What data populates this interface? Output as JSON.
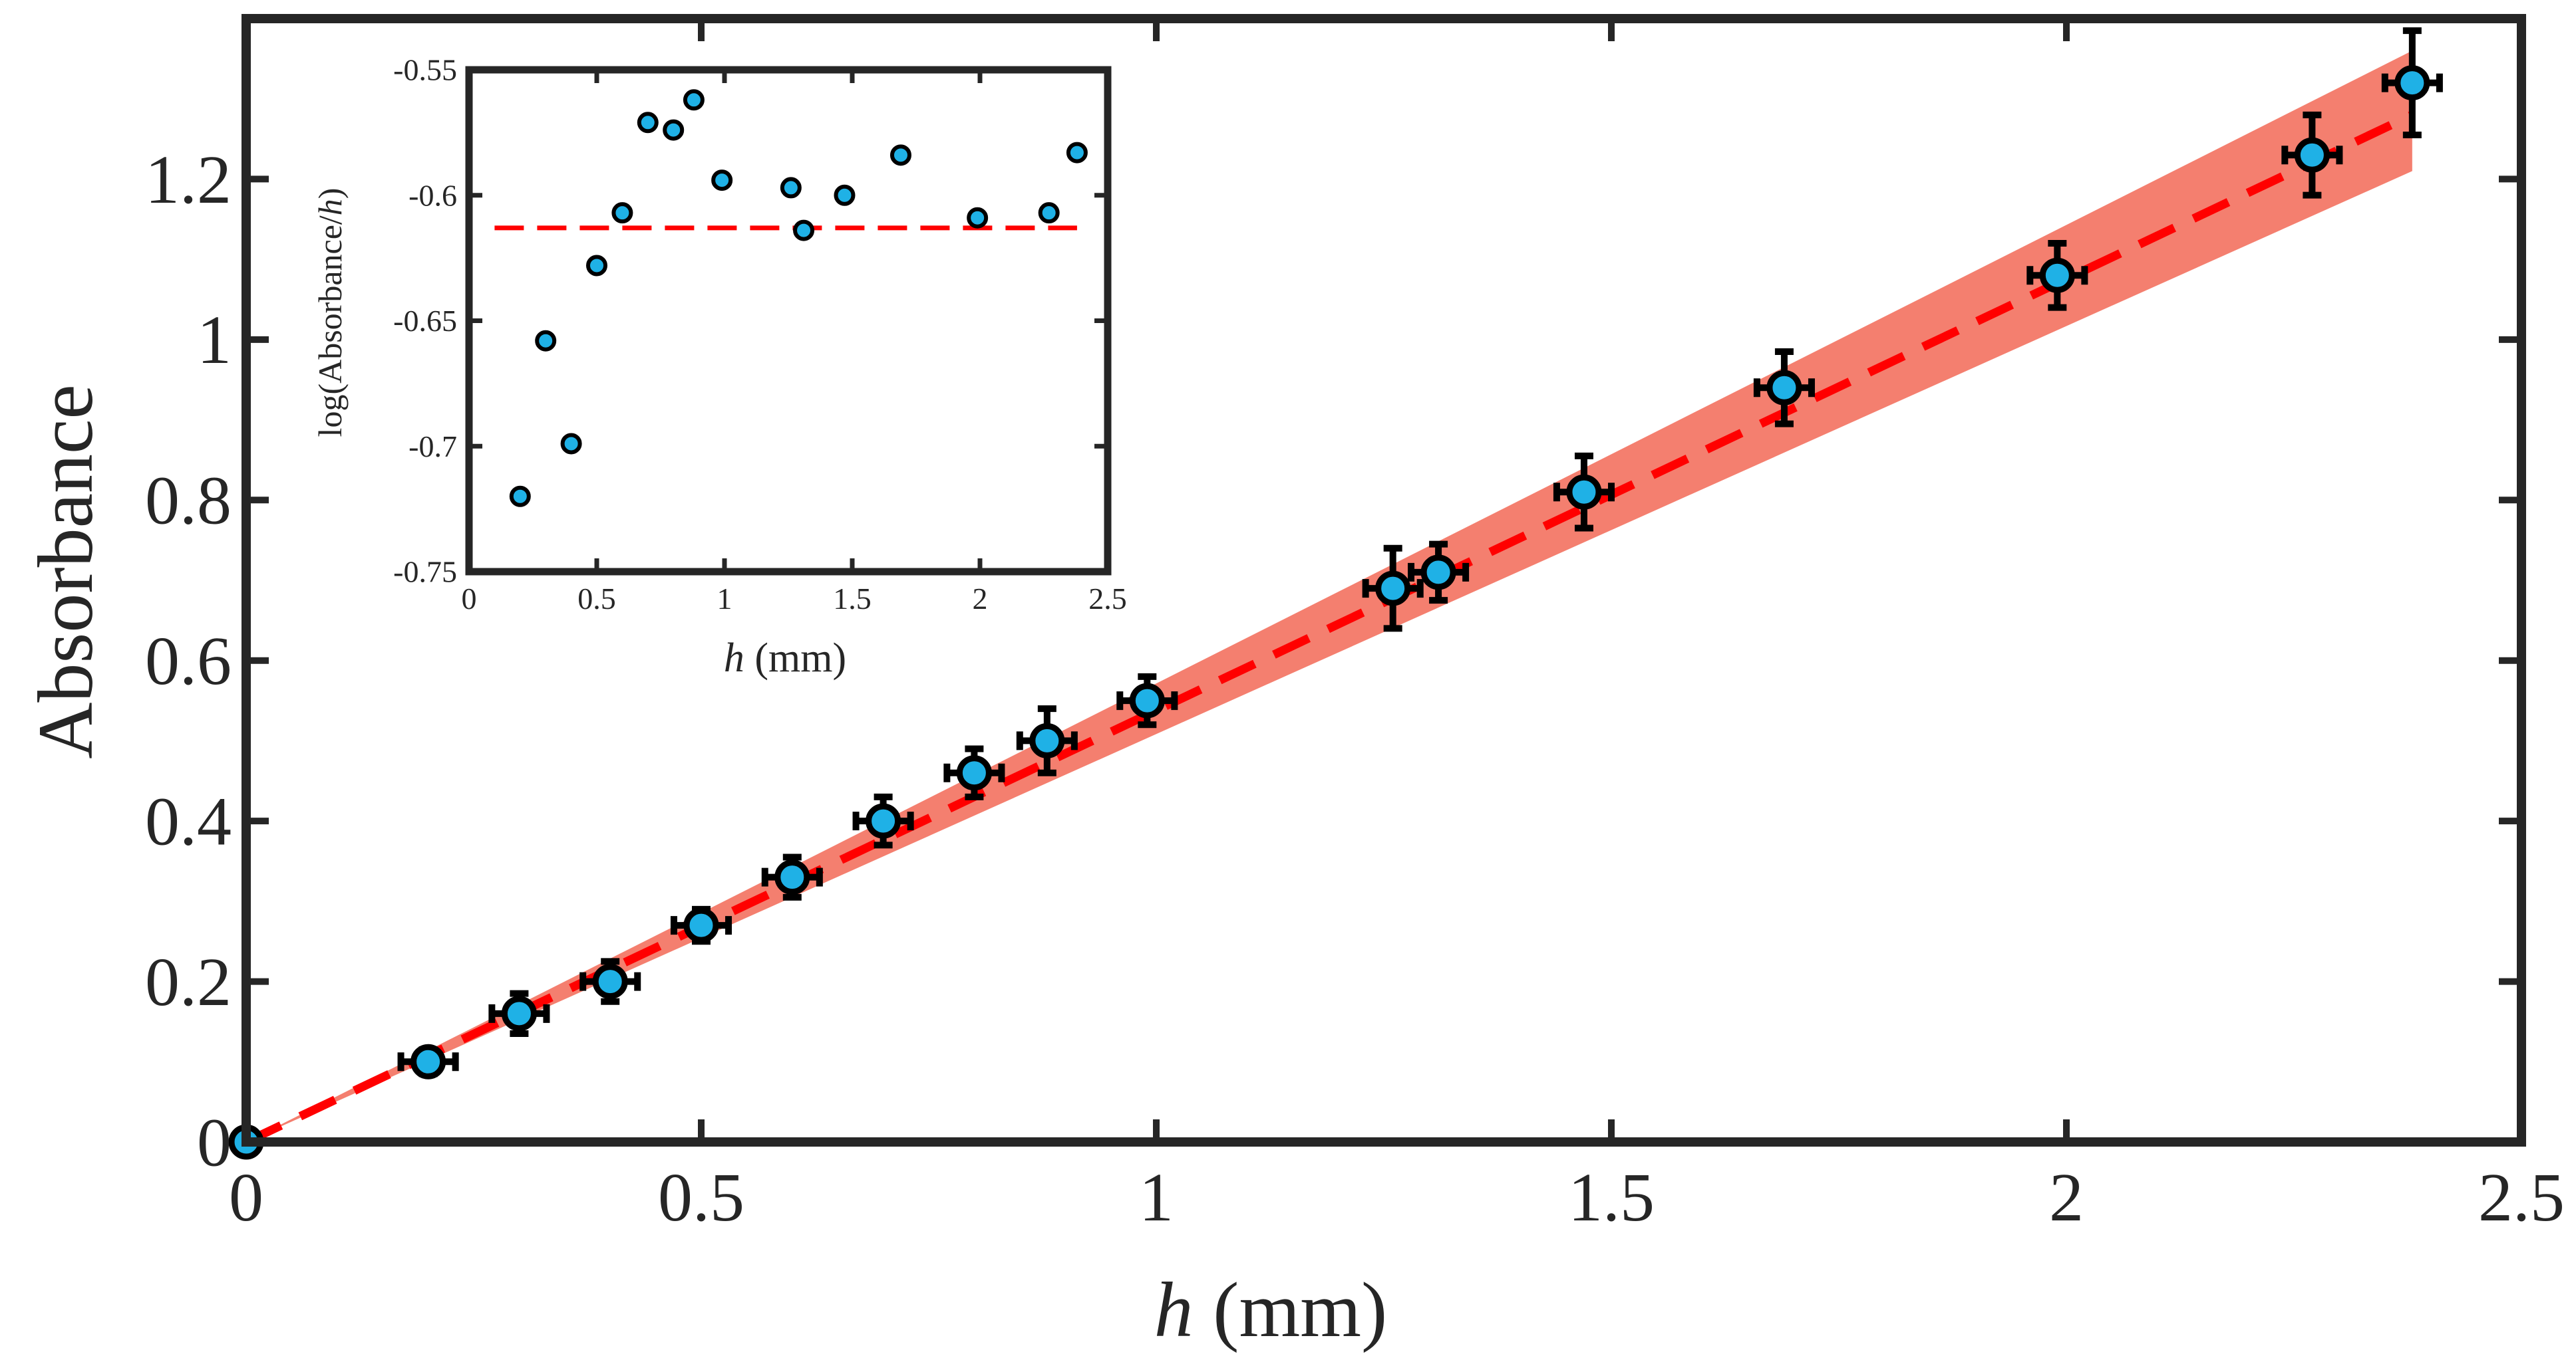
{
  "chart_data": [
    {
      "type": "scatter",
      "title": "",
      "xlabel": {
        "var": "h",
        "unit": " (mm)"
      },
      "ylabel": "Absorbance",
      "xlim": [
        0,
        2.5
      ],
      "ylim": [
        0,
        1.4
      ],
      "xticks": [
        0,
        0.5,
        1,
        1.5,
        2,
        2.5
      ],
      "xtick_labels": [
        "0",
        "0.5",
        "1",
        "1.5",
        "2",
        "2.5"
      ],
      "yticks": [
        0,
        0.2,
        0.4,
        0.6,
        0.8,
        1,
        1.2
      ],
      "ytick_labels": [
        "0",
        "0.2",
        "0.4",
        "0.6",
        "0.8",
        "1",
        "1.2"
      ],
      "grid": false,
      "colors": {
        "marker": "#1fb1e6",
        "fit": "#ff0000",
        "band": "#f47f6f",
        "axis": "#262626"
      },
      "fit": {
        "style": "dashed",
        "x": [
          0,
          2.38
        ],
        "y": [
          0,
          1.28
        ]
      },
      "band": {
        "x": [
          0,
          2.38
        ],
        "y_low": [
          0,
          1.21
        ],
        "y_high": [
          0,
          1.36
        ]
      },
      "points": [
        {
          "x": 0,
          "y": 0,
          "xerr": 0,
          "yerr": 0
        },
        {
          "x": 0.2,
          "y": 0.1,
          "xerr": 0.03,
          "yerr": 0.015
        },
        {
          "x": 0.3,
          "y": 0.16,
          "xerr": 0.03,
          "yerr": 0.025
        },
        {
          "x": 0.4,
          "y": 0.2,
          "xerr": 0.03,
          "yerr": 0.025
        },
        {
          "x": 0.5,
          "y": 0.27,
          "xerr": 0.03,
          "yerr": 0.02
        },
        {
          "x": 0.6,
          "y": 0.33,
          "xerr": 0.03,
          "yerr": 0.025
        },
        {
          "x": 0.7,
          "y": 0.4,
          "xerr": 0.03,
          "yerr": 0.03
        },
        {
          "x": 0.8,
          "y": 0.46,
          "xerr": 0.03,
          "yerr": 0.03
        },
        {
          "x": 0.88,
          "y": 0.5,
          "xerr": 0.03,
          "yerr": 0.04
        },
        {
          "x": 0.99,
          "y": 0.55,
          "xerr": 0.03,
          "yerr": 0.03
        },
        {
          "x": 1.26,
          "y": 0.69,
          "xerr": 0.03,
          "yerr": 0.05
        },
        {
          "x": 1.31,
          "y": 0.71,
          "xerr": 0.03,
          "yerr": 0.035
        },
        {
          "x": 1.47,
          "y": 0.81,
          "xerr": 0.03,
          "yerr": 0.045
        },
        {
          "x": 1.69,
          "y": 0.94,
          "xerr": 0.03,
          "yerr": 0.045
        },
        {
          "x": 1.99,
          "y": 1.08,
          "xerr": 0.03,
          "yerr": 0.04
        },
        {
          "x": 2.27,
          "y": 1.23,
          "xerr": 0.03,
          "yerr": 0.05
        },
        {
          "x": 2.38,
          "y": 1.32,
          "xerr": 0.03,
          "yerr": 0.065
        }
      ]
    },
    {
      "type": "scatter",
      "title": "",
      "xlabel": {
        "var": "h",
        "unit": " (mm)"
      },
      "ylabel": {
        "prefix": "log(Absorbance/",
        "var": "h",
        "suffix": ")"
      },
      "xlim": [
        0,
        2.5
      ],
      "ylim": [
        -0.75,
        -0.55
      ],
      "xticks": [
        0,
        0.5,
        1,
        1.5,
        2,
        2.5
      ],
      "xtick_labels": [
        "0",
        "0.5",
        "1",
        "1.5",
        "2",
        "2.5"
      ],
      "yticks": [
        -0.75,
        -0.7,
        -0.65,
        -0.6,
        -0.55
      ],
      "ytick_labels": [
        "-0.75",
        "-0.7",
        "-0.65",
        "-0.6",
        "-0.55"
      ],
      "grid": false,
      "colors": {
        "marker": "#1fb1e6",
        "fit": "#ff0000",
        "axis": "#262626"
      },
      "fit": {
        "style": "dashed",
        "x": [
          0.1,
          2.38
        ],
        "y": [
          -0.613,
          -0.613
        ]
      },
      "points": [
        {
          "x": 0.2,
          "y": -0.72
        },
        {
          "x": 0.3,
          "y": -0.658
        },
        {
          "x": 0.4,
          "y": -0.699
        },
        {
          "x": 0.5,
          "y": -0.628
        },
        {
          "x": 0.6,
          "y": -0.607
        },
        {
          "x": 0.7,
          "y": -0.571
        },
        {
          "x": 0.8,
          "y": -0.574
        },
        {
          "x": 0.88,
          "y": -0.562
        },
        {
          "x": 0.99,
          "y": -0.594
        },
        {
          "x": 1.26,
          "y": -0.597
        },
        {
          "x": 1.31,
          "y": -0.614
        },
        {
          "x": 1.47,
          "y": -0.6
        },
        {
          "x": 1.69,
          "y": -0.584
        },
        {
          "x": 1.99,
          "y": -0.609
        },
        {
          "x": 2.27,
          "y": -0.607
        },
        {
          "x": 2.38,
          "y": -0.583
        }
      ]
    }
  ]
}
